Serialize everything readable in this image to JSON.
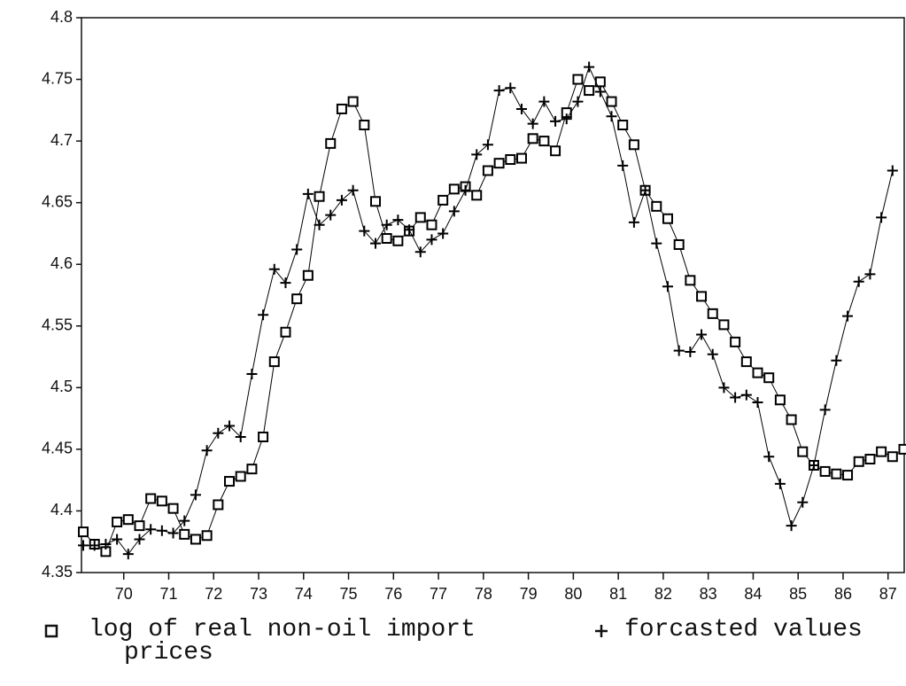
{
  "chart_data": {
    "type": "line",
    "x": [
      69.1,
      69.35,
      69.6,
      69.85,
      70.1,
      70.35,
      70.6,
      70.85,
      71.1,
      71.35,
      71.6,
      71.85,
      72.1,
      72.35,
      72.6,
      72.85,
      73.1,
      73.35,
      73.6,
      73.85,
      74.1,
      74.35,
      74.6,
      74.85,
      75.1,
      75.35,
      75.6,
      75.85,
      76.1,
      76.35,
      76.6,
      76.85,
      77.1,
      77.35,
      77.6,
      77.85,
      78.1,
      78.35,
      78.6,
      78.85,
      79.1,
      79.35,
      79.6,
      79.85,
      80.1,
      80.35,
      80.6,
      80.85,
      81.1,
      81.35,
      81.6,
      81.85,
      82.1,
      82.35,
      82.6,
      82.85,
      83.1,
      83.35,
      83.6,
      83.85,
      84.1,
      84.35,
      84.6,
      84.85,
      85.1,
      85.35,
      85.6,
      85.85,
      86.1,
      86.35,
      86.6,
      86.85,
      87.1,
      87.35
    ],
    "series": [
      {
        "name": "log of real non-oil import prices",
        "color": "#000000",
        "marker": "square",
        "values": [
          4.383,
          4.373,
          4.367,
          4.391,
          4.393,
          4.388,
          4.41,
          4.408,
          4.402,
          4.381,
          4.377,
          4.38,
          4.405,
          4.424,
          4.428,
          4.434,
          4.46,
          4.521,
          4.545,
          4.572,
          4.591,
          4.655,
          4.698,
          4.726,
          4.732,
          4.713,
          4.651,
          4.621,
          4.619,
          4.627,
          4.638,
          4.632,
          4.652,
          4.661,
          4.663,
          4.656,
          4.676,
          4.682,
          4.685,
          4.686,
          4.702,
          4.7,
          4.692,
          4.723,
          4.75,
          4.741,
          4.748,
          4.732,
          4.713,
          4.697,
          4.66,
          4.647,
          4.637,
          4.616,
          4.587,
          4.574,
          4.56,
          4.551,
          4.537,
          4.521,
          4.512,
          4.508,
          4.49,
          4.474,
          4.448,
          4.437,
          4.432,
          4.43,
          4.429,
          4.44,
          4.442,
          4.448,
          4.444,
          4.45
        ]
      },
      {
        "name": "forcasted values",
        "color": "#000000",
        "marker": "plus",
        "values": [
          4.372,
          4.372,
          4.373,
          4.377,
          4.365,
          4.377,
          4.385,
          4.384,
          4.382,
          4.392,
          4.413,
          4.449,
          4.463,
          4.469,
          4.46,
          4.511,
          4.559,
          4.596,
          4.585,
          4.612,
          4.657,
          4.632,
          4.64,
          4.652,
          4.66,
          4.627,
          4.617,
          4.632,
          4.636,
          4.628,
          4.61,
          4.62,
          4.625,
          4.643,
          4.66,
          4.689,
          4.697,
          4.741,
          4.743,
          4.726,
          4.714,
          4.732,
          4.716,
          4.718,
          4.732,
          4.76,
          4.74,
          4.72,
          4.68,
          4.634,
          4.66,
          4.617,
          4.582,
          4.53,
          4.529,
          4.543,
          4.527,
          4.5,
          4.492,
          4.494,
          4.488,
          4.444,
          4.422,
          4.388,
          4.407,
          4.437,
          4.482,
          4.522,
          4.558,
          4.586,
          4.592,
          4.638,
          4.676,
          null
        ]
      }
    ],
    "xlim": [
      69.06,
      87.36
    ],
    "xticks": [
      70,
      71,
      72,
      73,
      74,
      75,
      76,
      77,
      78,
      79,
      80,
      81,
      82,
      83,
      84,
      85,
      86,
      87
    ],
    "ylim": [
      4.35,
      4.8
    ],
    "yticks": [
      4.35,
      4.4,
      4.45,
      4.5,
      4.55,
      4.6,
      4.65,
      4.7,
      4.75,
      4.8
    ]
  }
}
